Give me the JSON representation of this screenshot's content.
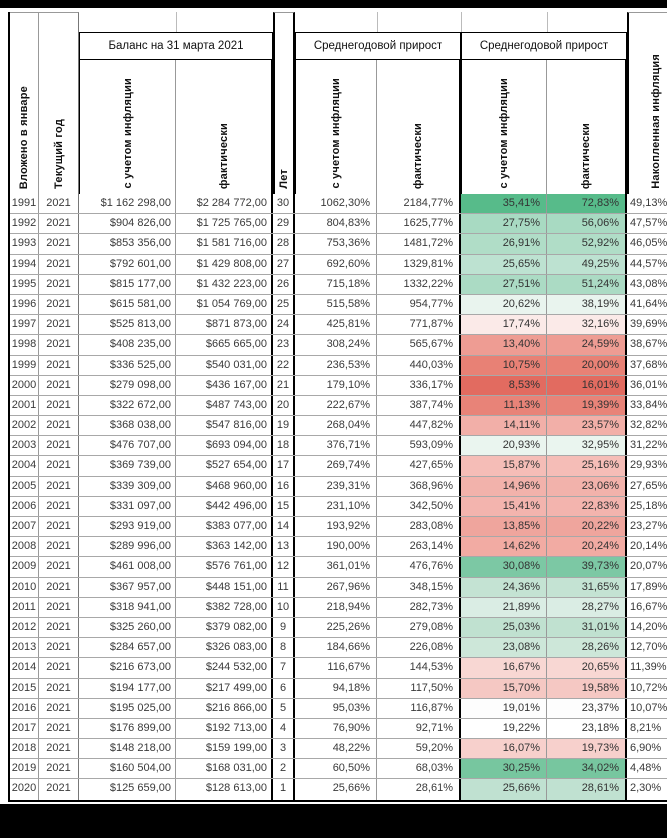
{
  "colors": {
    "frame": "#000000",
    "grid_minor": "#a8a8a8",
    "heat_green_max": "#57BB8A",
    "heat_red_min": "#E26B60",
    "background": "#ffffff"
  },
  "table": {
    "headers": {
      "invested": "Вложено в январе",
      "current_year": "Текущий год",
      "years": "Лет",
      "cumulative_inflation": "Накопленная инфляция",
      "balance_group": "Баланс на 31 марта 2021",
      "growth_group": "Среднегодовой прирост",
      "with_inflation": "с учетом инфляции",
      "actual": "фактически"
    },
    "rows": [
      {
        "y": "1991",
        "cy": "2021",
        "bi": "$1 162 298,00",
        "bf": "$2 284 772,00",
        "n": "30",
        "gi": "1062,30%",
        "gf": "2184,77%",
        "hi": "35,41%",
        "hf": "72,83%",
        "fl": "49,13%",
        "color": "#57BB8A"
      },
      {
        "y": "1992",
        "cy": "2021",
        "bi": "$904 826,00",
        "bf": "$1 725 765,00",
        "n": "29",
        "gi": "804,83%",
        "gf": "1625,77%",
        "hi": "27,75%",
        "hf": "56,06%",
        "fl": "47,57%",
        "color": "#A8DAC2"
      },
      {
        "y": "1993",
        "cy": "2021",
        "bi": "$853 356,00",
        "bf": "$1 581 716,00",
        "n": "28",
        "gi": "753,36%",
        "gf": "1481,72%",
        "hi": "26,91%",
        "hf": "52,92%",
        "fl": "46,05%",
        "color": "#B0DDC7"
      },
      {
        "y": "1994",
        "cy": "2021",
        "bi": "$792 601,00",
        "bf": "$1 429 808,00",
        "n": "27",
        "gi": "692,60%",
        "gf": "1329,81%",
        "hi": "25,65%",
        "hf": "49,25%",
        "fl": "44,57%",
        "color": "#BDE2D1"
      },
      {
        "y": "1995",
        "cy": "2021",
        "bi": "$815 177,00",
        "bf": "$1 432 223,00",
        "n": "26",
        "gi": "715,18%",
        "gf": "1332,22%",
        "hi": "27,51%",
        "hf": "51,24%",
        "fl": "43,08%",
        "color": "#ABDBC4"
      },
      {
        "y": "1996",
        "cy": "2021",
        "bi": "$615 581,00",
        "bf": "$1 054 769,00",
        "n": "25",
        "gi": "515,58%",
        "gf": "954,77%",
        "hi": "20,62%",
        "hf": "38,19%",
        "fl": "41,64%",
        "color": "#E9F4EE"
      },
      {
        "y": "1997",
        "cy": "2021",
        "bi": "$525 813,00",
        "bf": "$871 873,00",
        "n": "24",
        "gi": "425,81%",
        "gf": "771,87%",
        "hi": "17,74%",
        "hf": "32,16%",
        "fl": "39,69%",
        "color": "#FBEAE8"
      },
      {
        "y": "1998",
        "cy": "2021",
        "bi": "$408 235,00",
        "bf": "$665 665,00",
        "n": "23",
        "gi": "308,24%",
        "gf": "565,67%",
        "hi": "13,40%",
        "hf": "24,59%",
        "fl": "38,67%",
        "color": "#EE9C93"
      },
      {
        "y": "1999",
        "cy": "2021",
        "bi": "$336 525,00",
        "bf": "$540 031,00",
        "n": "22",
        "gi": "236,53%",
        "gf": "440,03%",
        "hi": "10,75%",
        "hf": "20,00%",
        "fl": "37,68%",
        "color": "#E88175"
      },
      {
        "y": "2000",
        "cy": "2021",
        "bi": "$279 098,00",
        "bf": "$436 167,00",
        "n": "21",
        "gi": "179,10%",
        "gf": "336,17%",
        "hi": "8,53%",
        "hf": "16,01%",
        "fl": "36,01%",
        "color": "#E26B60"
      },
      {
        "y": "2001",
        "cy": "2021",
        "bi": "$322 672,00",
        "bf": "$487 743,00",
        "n": "20",
        "gi": "222,67%",
        "gf": "387,74%",
        "hi": "11,13%",
        "hf": "19,39%",
        "fl": "33,84%",
        "color": "#E88378"
      },
      {
        "y": "2002",
        "cy": "2021",
        "bi": "$368 038,00",
        "bf": "$547 816,00",
        "n": "19",
        "gi": "268,04%",
        "gf": "447,82%",
        "hi": "14,11%",
        "hf": "23,57%",
        "fl": "32,82%",
        "color": "#F2AFA8"
      },
      {
        "y": "2003",
        "cy": "2021",
        "bi": "$476 707,00",
        "bf": "$693 094,00",
        "n": "18",
        "gi": "376,71%",
        "gf": "593,09%",
        "hi": "20,93%",
        "hf": "32,95%",
        "fl": "31,22%",
        "color": "#EAF5EF"
      },
      {
        "y": "2004",
        "cy": "2021",
        "bi": "$369 739,00",
        "bf": "$527 654,00",
        "n": "17",
        "gi": "269,74%",
        "gf": "427,65%",
        "hi": "15,87%",
        "hf": "25,16%",
        "fl": "29,93%",
        "color": "#F5BDB7"
      },
      {
        "y": "2005",
        "cy": "2021",
        "bi": "$339 309,00",
        "bf": "$468 960,00",
        "n": "16",
        "gi": "239,31%",
        "gf": "368,96%",
        "hi": "14,96%",
        "hf": "23,06%",
        "fl": "27,65%",
        "color": "#F2B2AB"
      },
      {
        "y": "2006",
        "cy": "2021",
        "bi": "$331 097,00",
        "bf": "$442 496,00",
        "n": "15",
        "gi": "231,10%",
        "gf": "342,50%",
        "hi": "15,41%",
        "hf": "22,83%",
        "fl": "25,18%",
        "color": "#F3B4AE"
      },
      {
        "y": "2007",
        "cy": "2021",
        "bi": "$293 919,00",
        "bf": "$383 077,00",
        "n": "14",
        "gi": "193,92%",
        "gf": "283,08%",
        "hi": "13,85%",
        "hf": "20,22%",
        "fl": "23,27%",
        "color": "#EFA59D"
      },
      {
        "y": "2008",
        "cy": "2021",
        "bi": "$289 996,00",
        "bf": "$363 142,00",
        "n": "13",
        "gi": "190,00%",
        "gf": "263,14%",
        "hi": "14,62%",
        "hf": "20,24%",
        "fl": "20,14%",
        "color": "#F2ABA3"
      },
      {
        "y": "2009",
        "cy": "2021",
        "bi": "$461 008,00",
        "bf": "$576 761,00",
        "n": "12",
        "gi": "361,01%",
        "gf": "476,76%",
        "hi": "30,08%",
        "hf": "39,73%",
        "fl": "20,07%",
        "color": "#7CC8A4"
      },
      {
        "y": "2010",
        "cy": "2021",
        "bi": "$367 957,00",
        "bf": "$448 151,00",
        "n": "11",
        "gi": "267,96%",
        "gf": "348,15%",
        "hi": "24,36%",
        "hf": "31,65%",
        "fl": "17,89%",
        "color": "#C4E3D3"
      },
      {
        "y": "2011",
        "cy": "2021",
        "bi": "$318 941,00",
        "bf": "$382 728,00",
        "n": "10",
        "gi": "218,94%",
        "gf": "282,73%",
        "hi": "21,89%",
        "hf": "28,27%",
        "fl": "16,67%",
        "color": "#DAEDE4"
      },
      {
        "y": "2012",
        "cy": "2021",
        "bi": "$325 260,00",
        "bf": "$379 082,00",
        "n": "9",
        "gi": "225,26%",
        "gf": "279,08%",
        "hi": "25,03%",
        "hf": "31,01%",
        "fl": "14,20%",
        "color": "#C0E1D0"
      },
      {
        "y": "2013",
        "cy": "2021",
        "bi": "$284 657,00",
        "bf": "$326 083,00",
        "n": "8",
        "gi": "184,66%",
        "gf": "226,08%",
        "hi": "23,08%",
        "hf": "28,26%",
        "fl": "12,70%",
        "color": "#CDE7D9"
      },
      {
        "y": "2014",
        "cy": "2021",
        "bi": "$216 673,00",
        "bf": "$244 532,00",
        "n": "7",
        "gi": "116,67%",
        "gf": "144,53%",
        "hi": "16,67%",
        "hf": "20,65%",
        "fl": "11,39%",
        "color": "#F8D7D3"
      },
      {
        "y": "2015",
        "cy": "2021",
        "bi": "$194 177,00",
        "bf": "$217 499,00",
        "n": "6",
        "gi": "94,18%",
        "gf": "117,50%",
        "hi": "15,70%",
        "hf": "19,58%",
        "fl": "10,72%",
        "color": "#F5C8C3"
      },
      {
        "y": "2016",
        "cy": "2021",
        "bi": "$195 025,00",
        "bf": "$216 866,00",
        "n": "5",
        "gi": "95,03%",
        "gf": "116,87%",
        "hi": "19,01%",
        "hf": "23,37%",
        "fl": "10,07%",
        "color": "#FDFDFD"
      },
      {
        "y": "2017",
        "cy": "2021",
        "bi": "$176 899,00",
        "bf": "$192 713,00",
        "n": "4",
        "gi": "76,90%",
        "gf": "92,71%",
        "hi": "19,22%",
        "hf": "23,18%",
        "fl": "8,21%",
        "color": "#FFFFFF"
      },
      {
        "y": "2018",
        "cy": "2021",
        "bi": "$148 218,00",
        "bf": "$159 199,00",
        "n": "3",
        "gi": "48,22%",
        "gf": "59,20%",
        "hi": "16,07%",
        "hf": "19,73%",
        "fl": "6,90%",
        "color": "#F7D0CC"
      },
      {
        "y": "2019",
        "cy": "2021",
        "bi": "$160 504,00",
        "bf": "$168 031,00",
        "n": "2",
        "gi": "60,50%",
        "gf": "68,03%",
        "hi": "30,25%",
        "hf": "34,02%",
        "fl": "4,48%",
        "color": "#77C69F"
      },
      {
        "y": "2020",
        "cy": "2021",
        "bi": "$125 659,00",
        "bf": "$128 613,00",
        "n": "1",
        "gi": "25,66%",
        "gf": "28,61%",
        "hi": "25,66%",
        "hf": "28,61%",
        "fl": "2,30%",
        "color": "#C0E1D1"
      }
    ]
  }
}
